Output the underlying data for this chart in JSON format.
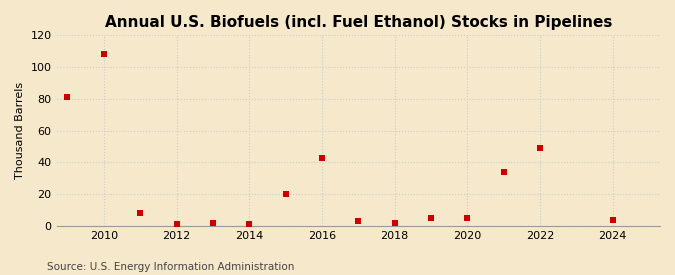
{
  "title": "Annual U.S. Biofuels (incl. Fuel Ethanol) Stocks in Pipelines",
  "ylabel": "Thousand Barrels",
  "source": "Source: U.S. Energy Information Administration",
  "years": [
    2009,
    2010,
    2011,
    2012,
    2013,
    2014,
    2015,
    2016,
    2017,
    2018,
    2019,
    2020,
    2021,
    2022,
    2024
  ],
  "values": [
    81,
    108,
    8,
    1,
    2,
    1,
    20,
    43,
    3,
    2,
    5,
    5,
    34,
    49,
    4
  ],
  "marker_color": "#cc0000",
  "marker": "s",
  "marker_size": 5,
  "background_color": "#f5e8cb",
  "plot_background": "#f5e8cb",
  "ylim": [
    0,
    120
  ],
  "yticks": [
    0,
    20,
    40,
    60,
    80,
    100,
    120
  ],
  "xlim": [
    2008.7,
    2025.3
  ],
  "xticks": [
    2010,
    2012,
    2014,
    2016,
    2018,
    2020,
    2022,
    2024
  ],
  "grid_color": "#cccccc",
  "grid_style": "--",
  "title_fontsize": 11,
  "ylabel_fontsize": 8,
  "tick_fontsize": 8,
  "source_fontsize": 7.5
}
